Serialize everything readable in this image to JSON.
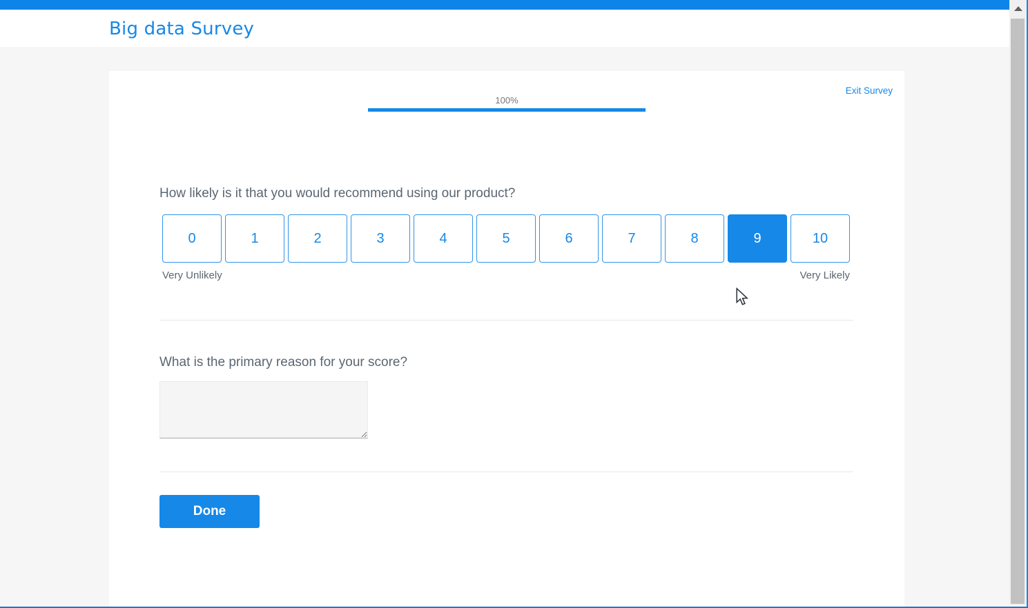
{
  "header": {
    "title": "Big data Survey"
  },
  "survey": {
    "exit_link": "Exit Survey",
    "progress": {
      "percent_label": "100%",
      "value": 100
    },
    "nps_question": {
      "text": "How likely is it that you would recommend using our product?",
      "options": [
        "0",
        "1",
        "2",
        "3",
        "4",
        "5",
        "6",
        "7",
        "8",
        "9",
        "10"
      ],
      "selected": "9",
      "left_label": "Very Unlikely",
      "right_label": "Very Likely"
    },
    "reason_question": {
      "text": "What is the primary reason for your score?",
      "value": ""
    },
    "done_button": "Done"
  },
  "colors": {
    "accent": "#1588e8",
    "top_bar": "#0d84e8",
    "page_background": "#f6f6f6",
    "question_text": "#5a6672",
    "progress_text": "#767676"
  }
}
